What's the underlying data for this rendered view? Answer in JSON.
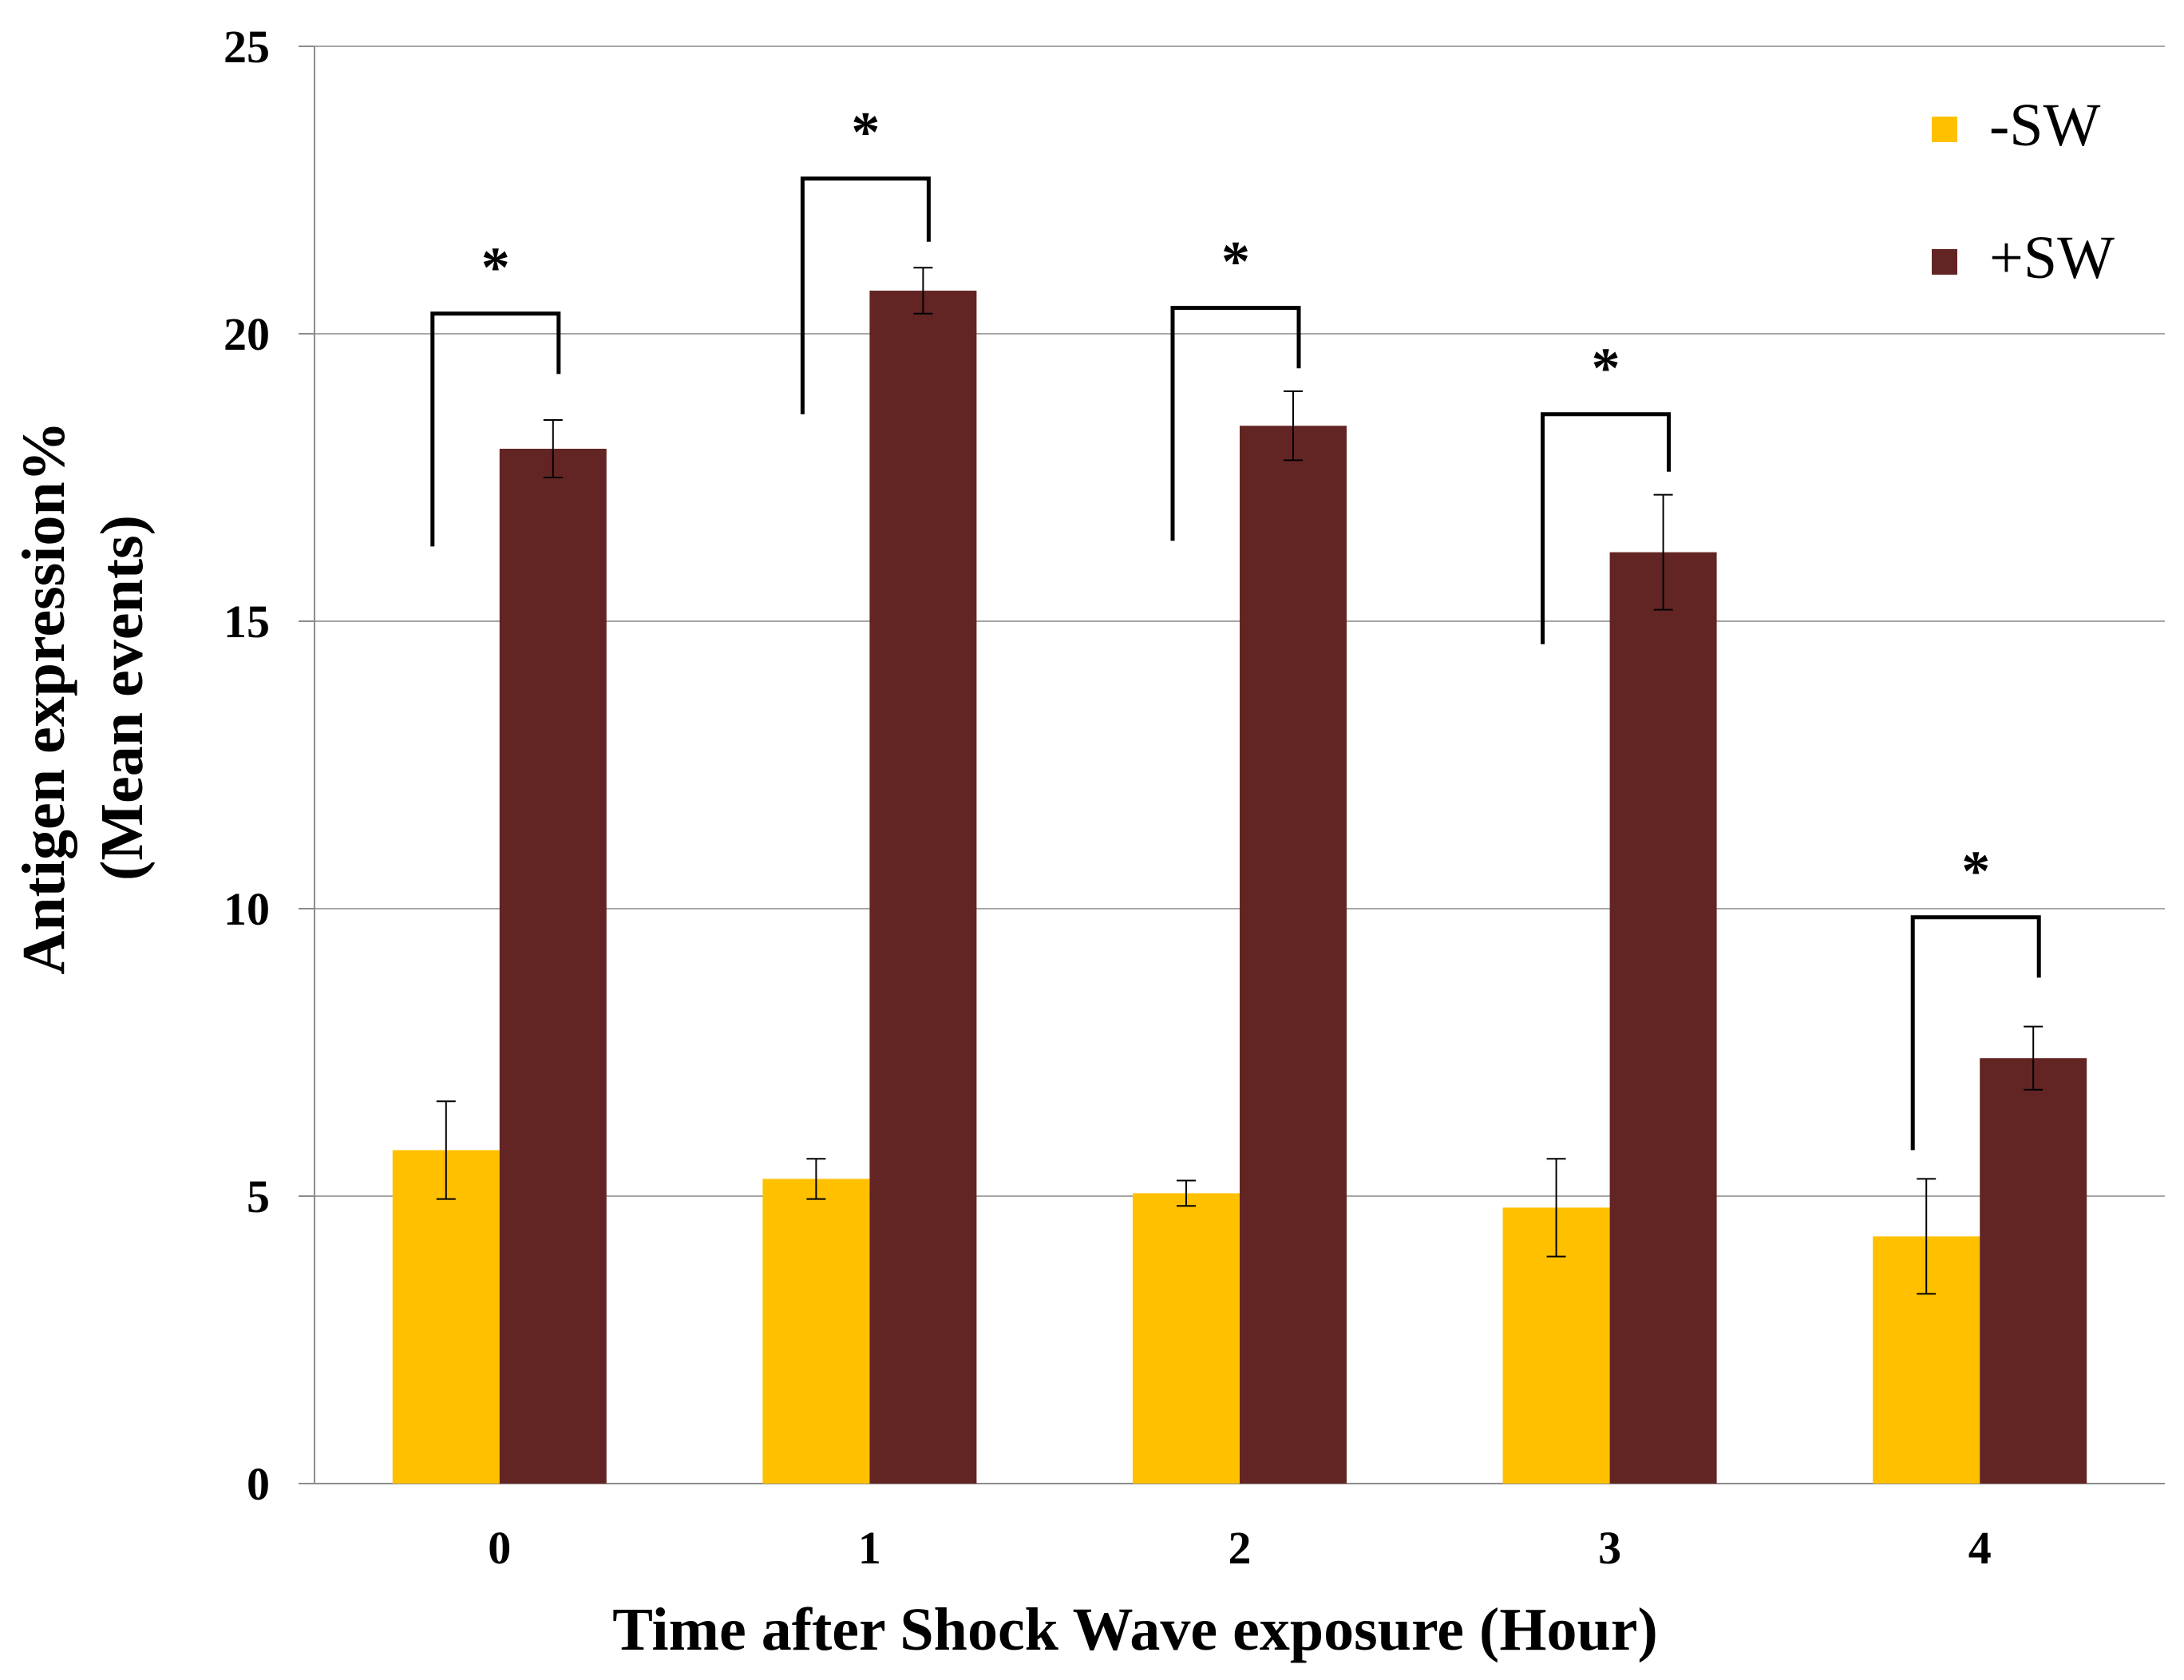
{
  "chart_data": {
    "type": "bar",
    "title": "",
    "xlabel": "Time after Shock Wave exposure (Hour)",
    "ylabel": [
      "Antigen expression%",
      "(Mean events)"
    ],
    "categories": [
      "0",
      "1",
      "2",
      "3",
      "4"
    ],
    "ylim": [
      0,
      25
    ],
    "yticks": [
      0,
      5,
      10,
      15,
      20,
      25
    ],
    "yticks_labels": [
      "0",
      "5",
      "10",
      "15",
      "20",
      "25"
    ],
    "grid": true,
    "legend_position": "top-right",
    "series": [
      {
        "name": "-SW",
        "color": "#FFC000",
        "values": [
          5.8,
          5.3,
          5.05,
          4.8,
          4.3
        ],
        "errors": [
          0.85,
          0.35,
          0.22,
          0.85,
          1.0
        ]
      },
      {
        "name": "+SW",
        "color": "#632523",
        "values": [
          18.0,
          20.75,
          18.4,
          16.2,
          7.4
        ],
        "errors": [
          0.5,
          0.4,
          0.6,
          1.0,
          0.55
        ]
      }
    ],
    "significance": [
      {
        "category": "0",
        "label": "*",
        "bracket_top": 20.35,
        "left_bottom": 16.3,
        "right_bottom": 19.3
      },
      {
        "category": "1",
        "label": "*",
        "bracket_top": 22.7,
        "left_bottom": 18.6,
        "right_bottom": 21.6
      },
      {
        "category": "2",
        "label": "*",
        "bracket_top": 20.45,
        "left_bottom": 16.4,
        "right_bottom": 19.4
      },
      {
        "category": "3",
        "label": "*",
        "bracket_top": 18.6,
        "left_bottom": 14.6,
        "right_bottom": 17.6
      },
      {
        "category": "4",
        "label": "*",
        "bracket_top": 9.85,
        "left_bottom": 5.8,
        "right_bottom": 8.8
      }
    ]
  }
}
